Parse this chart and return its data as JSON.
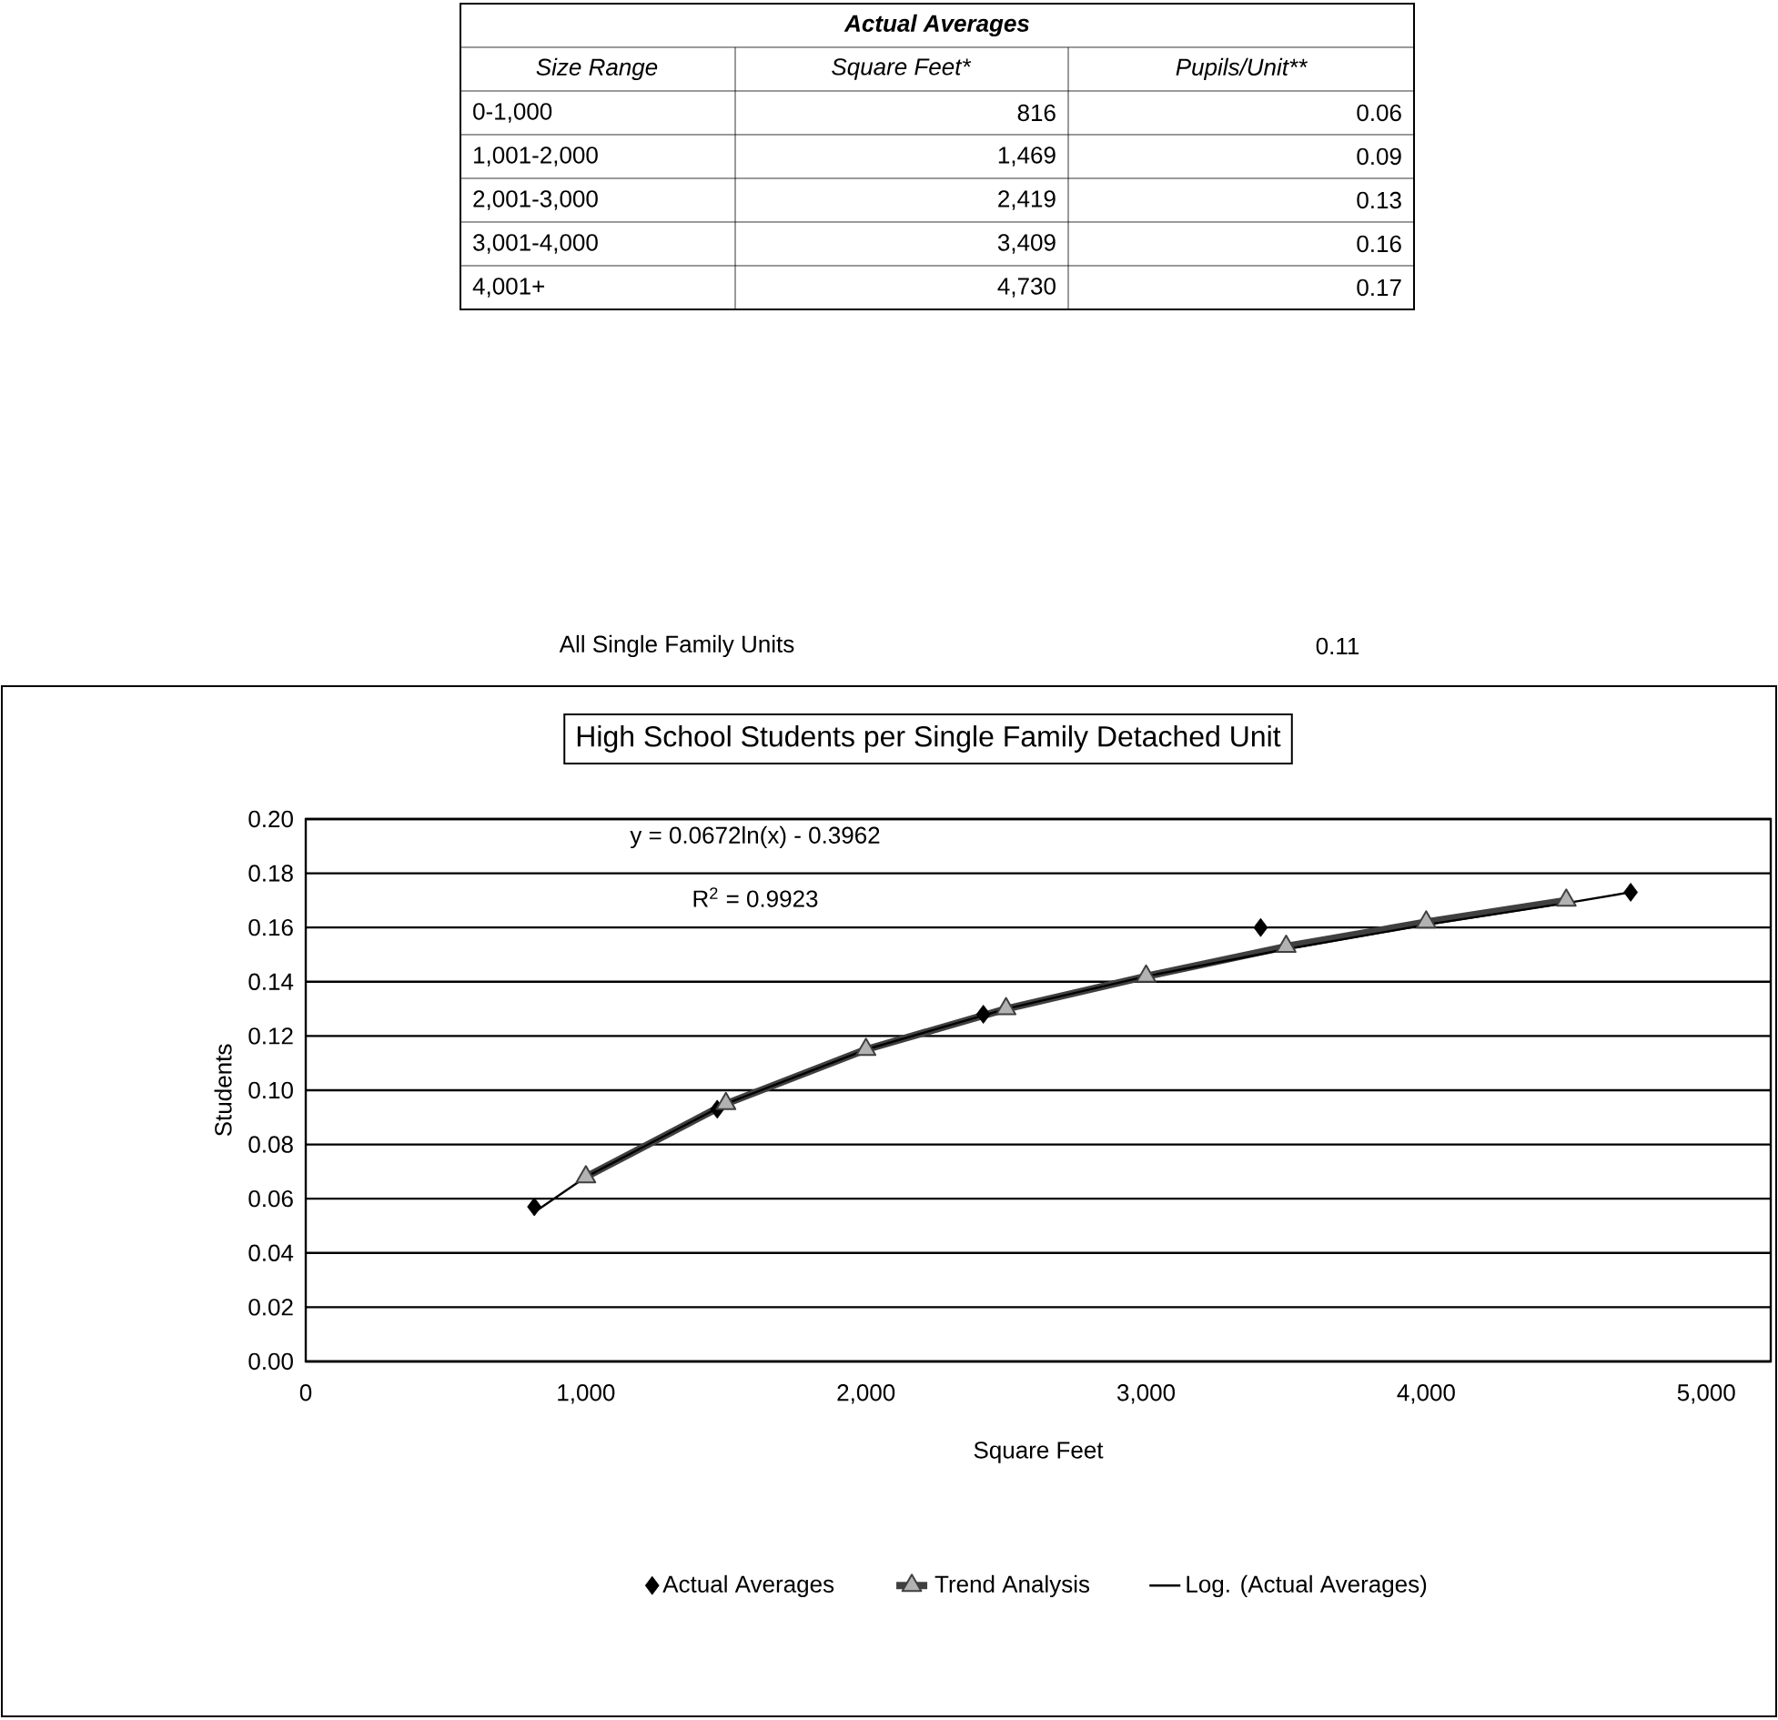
{
  "chart_data": {
    "type": "line",
    "title": "High School Students per Single Family Detached Unit",
    "xlabel": "Square Feet",
    "ylabel": "Students",
    "xlim": [
      0,
      5230
    ],
    "xticks": [
      0,
      {
        "value": 1000,
        "label": "1,000"
      },
      {
        "value": 2000,
        "label": "2,000"
      },
      {
        "value": 3000,
        "label": "3,000"
      },
      {
        "value": 4000,
        "label": "4,000"
      },
      {
        "value": 5000,
        "label": "5,000"
      }
    ],
    "ylim": [
      0,
      0.2
    ],
    "yticks": [
      {
        "value": 0,
        "label": "0.00"
      },
      {
        "value": 0.02,
        "label": "0.02"
      },
      {
        "value": 0.04,
        "label": "0.04"
      },
      {
        "value": 0.06,
        "label": "0.06"
      },
      {
        "value": 0.08,
        "label": "0.08"
      },
      {
        "value": 0.1,
        "label": "0.10"
      },
      {
        "value": 0.12,
        "label": "0.12"
      },
      {
        "value": 0.14,
        "label": "0.14"
      },
      {
        "value": 0.16,
        "label": "0.16"
      },
      {
        "value": 0.18,
        "label": "0.18"
      },
      {
        "value": 0.2,
        "label": "0.20"
      }
    ],
    "grid": "y",
    "legend": "bottom",
    "series": [
      {
        "name": "Actual Averages",
        "type": "scatter",
        "marker": "diamond",
        "color": "#000000",
        "x": [
          816,
          1469,
          2419,
          3409,
          4730
        ],
        "values": [
          0.057,
          0.093,
          0.128,
          0.16,
          0.173
        ]
      },
      {
        "name": "Trend Analysis",
        "type": "line",
        "marker": "triangle",
        "color": "#404040",
        "x": [
          1000,
          1500,
          2000,
          2500,
          3000,
          3500,
          4000,
          4500
        ],
        "values": [
          0.068,
          0.095,
          0.115,
          0.13,
          0.142,
          0.153,
          0.162,
          0.17
        ]
      },
      {
        "name": "Log. (Actual Averages)",
        "type": "line",
        "marker": "none",
        "color": "#000000",
        "x": [
          816,
          1000,
          1500,
          2000,
          2500,
          3000,
          3500,
          4000,
          4500,
          4730
        ],
        "values": [
          0.055,
          0.068,
          0.095,
          0.115,
          0.13,
          0.142,
          0.152,
          0.161,
          0.169,
          0.173
        ]
      }
    ],
    "annotations": [
      "Actual Averages",
      "Size Range",
      "Square Feet*",
      "Pupils/Unit**",
      "0-1,000",
      "1,001-2,000",
      "2,001-3,000",
      "3,001-4,000",
      "4,001+",
      "816",
      "1,469",
      "2,419",
      "3,409",
      "4,730",
      "0.06",
      "0.09",
      "0.13",
      "0.16",
      "0.17",
      "All Single Family Units",
      "0.11",
      "y = 0.0672ln(x) - 0.3962",
      "R$^{2}$ = 0.9923"
    ]
  }
}
